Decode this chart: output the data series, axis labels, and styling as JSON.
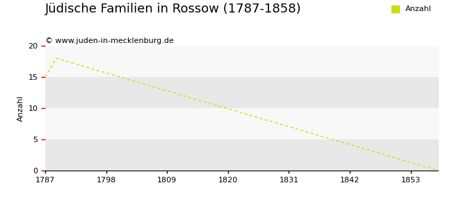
{
  "title": "Jüdische Familien in Rossow (1787-1858)",
  "subtitle": "© www.juden-in-mecklenburg.de",
  "ylabel": "Anzahl",
  "legend_label": "Anzahl",
  "outer_bg_color": "#ffffff",
  "plot_bg_color": "#eeeeee",
  "band_color_light": "#f8f8f8",
  "band_color_dark": "#e8e8e8",
  "line_color": "#ccdd11",
  "ytick_color": "#cc0000",
  "xtick_color": "#000000",
  "spine_color": "#000000",
  "x_data": [
    1787,
    1789,
    1858
  ],
  "y_data": [
    15,
    18,
    0
  ],
  "xlim": [
    1787,
    1858
  ],
  "ylim": [
    0,
    20
  ],
  "xticks": [
    1787,
    1798,
    1809,
    1820,
    1831,
    1842,
    1853
  ],
  "yticks": [
    0,
    5,
    10,
    15,
    20
  ],
  "title_fontsize": 13,
  "subtitle_fontsize": 8,
  "ylabel_fontsize": 8,
  "tick_fontsize": 8,
  "legend_fontsize": 8,
  "figsize": [
    6.5,
    3.0
  ],
  "dpi": 100
}
